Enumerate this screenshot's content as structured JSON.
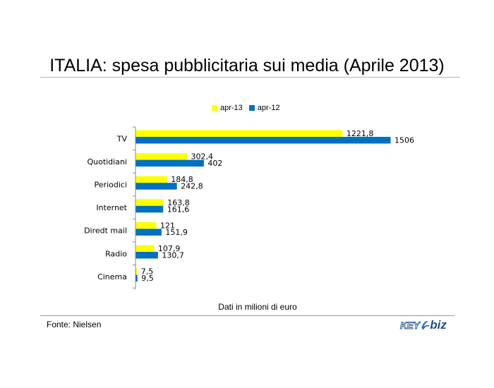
{
  "title": "ITALIA: spesa pubblicitaria sui media (Aprile 2013)",
  "note": "Dati in milioni di euro",
  "source": "Fonte: Nielsen",
  "logo": {
    "primary": "KEY",
    "secondary": "biz"
  },
  "colors": {
    "series_a": "#FFFF00",
    "series_b": "#0070C0",
    "axis": "#8c8c8c",
    "rules": "#b5b5b5"
  },
  "chart_data": {
    "type": "bar",
    "orientation": "horizontal",
    "categories": [
      "TV",
      "Quotidiani",
      "Periodici",
      "Internet",
      "Diredt mail",
      "Radio",
      "Cinema"
    ],
    "series": [
      {
        "name": "apr-13",
        "values": [
          1221.8,
          302.4,
          184.8,
          163.8,
          121,
          107.9,
          7.5
        ],
        "labels": [
          "1221,8",
          "302,4",
          "184,8",
          "163,8",
          "121",
          "107,9",
          "7,5"
        ],
        "color": "#FFFF00"
      },
      {
        "name": "apr-12",
        "values": [
          1506,
          402,
          242.8,
          161.6,
          151.9,
          130.7,
          9.5
        ],
        "labels": [
          "1506",
          "402",
          "242,8",
          "161,6",
          "151,9",
          "130,7",
          "9,5"
        ],
        "color": "#0070C0"
      }
    ],
    "xlim": [
      0,
      1506
    ],
    "grid": false,
    "legend": "top-center",
    "xlabel": "Dati in milioni di euro"
  }
}
